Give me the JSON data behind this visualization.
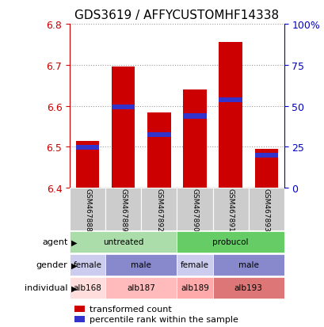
{
  "title": "GDS3619 / AFFYCUSTOMHF14338",
  "samples": [
    "GSM467888",
    "GSM467889",
    "GSM467892",
    "GSM467890",
    "GSM467891",
    "GSM467893"
  ],
  "bar_base": 6.4,
  "red_tops": [
    6.515,
    6.695,
    6.583,
    6.64,
    6.755,
    6.495
  ],
  "blue_vals": [
    6.498,
    6.597,
    6.53,
    6.575,
    6.615,
    6.48
  ],
  "ylim_left": [
    6.4,
    6.8
  ],
  "yticks_left": [
    6.4,
    6.5,
    6.6,
    6.7,
    6.8
  ],
  "ylim_right": [
    0,
    100
  ],
  "yticks_right": [
    0,
    25,
    50,
    75,
    100
  ],
  "ytick_labels_right": [
    "0",
    "25",
    "50",
    "75",
    "100%"
  ],
  "bar_color_red": "#cc0000",
  "bar_color_blue": "#3333cc",
  "bar_width": 0.65,
  "left_tick_color": "#cc0000",
  "right_tick_color": "#0000cc",
  "agent_row": {
    "label": "agent",
    "groups": [
      {
        "text": "untreated",
        "cols": [
          0,
          1,
          2
        ],
        "color": "#aaddaa"
      },
      {
        "text": "probucol",
        "cols": [
          3,
          4,
          5
        ],
        "color": "#66cc66"
      }
    ]
  },
  "gender_row": {
    "label": "gender",
    "groups": [
      {
        "text": "female",
        "cols": [
          0
        ],
        "color": "#ccccee"
      },
      {
        "text": "male",
        "cols": [
          1,
          2
        ],
        "color": "#8888cc"
      },
      {
        "text": "female",
        "cols": [
          3
        ],
        "color": "#ccccee"
      },
      {
        "text": "male",
        "cols": [
          4,
          5
        ],
        "color": "#8888cc"
      }
    ]
  },
  "individual_row": {
    "label": "individual",
    "groups": [
      {
        "text": "alb168",
        "cols": [
          0
        ],
        "color": "#ffdddd"
      },
      {
        "text": "alb187",
        "cols": [
          1,
          2
        ],
        "color": "#ffbbbb"
      },
      {
        "text": "alb189",
        "cols": [
          3
        ],
        "color": "#ffaaaa"
      },
      {
        "text": "alb193",
        "cols": [
          4,
          5
        ],
        "color": "#dd7777"
      }
    ]
  },
  "legend_red": "transformed count",
  "legend_blue": "percentile rank within the sample",
  "sample_col_bg": "#cccccc",
  "plot_bg": "#ffffff"
}
